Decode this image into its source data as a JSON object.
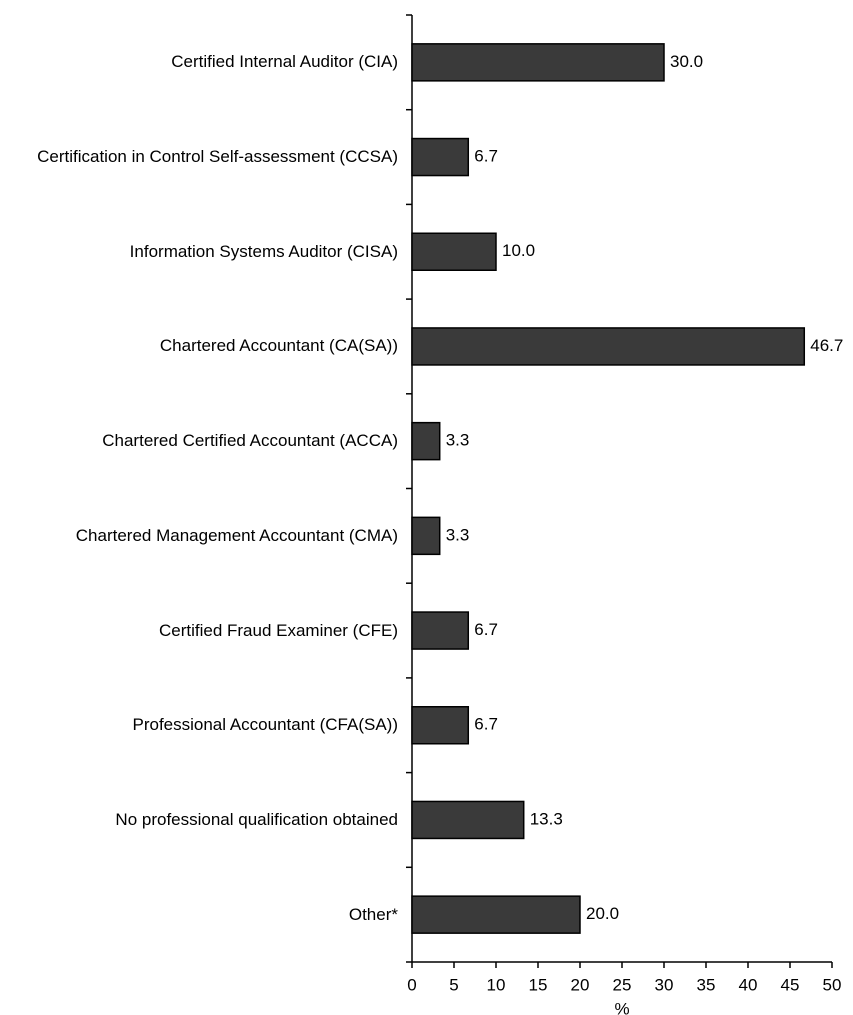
{
  "chart_data": {
    "type": "bar",
    "orientation": "horizontal",
    "categories": [
      "Certified Internal Auditor (CIA)",
      "Certification in Control Self-assessment (CCSA)",
      "Information Systems Auditor (CISA)",
      "Chartered Accountant (CA(SA))",
      "Chartered Certified Accountant (ACCA)",
      "Chartered Management Accountant (CMA)",
      "Certified Fraud Examiner (CFE)",
      "Professional Accountant (CFA(SA))",
      "No professional qualification obtained",
      "Other*"
    ],
    "values": [
      30,
      6.7,
      10,
      46.7,
      3.3,
      3.3,
      6.7,
      6.7,
      13.3,
      20
    ],
    "value_labels": [
      "30.0",
      "6.7",
      "10.0",
      "46.7",
      "3.3",
      "3.3",
      "6.7",
      "6.7",
      "13.3",
      "20.0"
    ],
    "color": "#3a3a3a",
    "x_label": "%",
    "xlim": [
      0,
      50
    ],
    "xticks": [
      0,
      5,
      10,
      15,
      20,
      25,
      30,
      35,
      40,
      45,
      50
    ],
    "grid": false
  }
}
